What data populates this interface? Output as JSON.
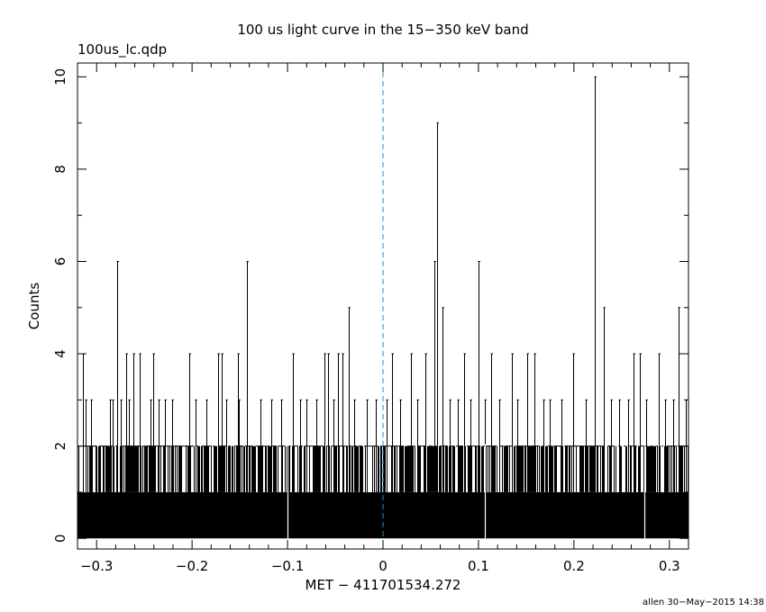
{
  "chart_data": {
    "type": "histogram",
    "title": "100 us light curve in the 15−350 keV band",
    "file_label": "100us_lc.qdp",
    "xlabel": "MET − 411701534.272",
    "ylabel": "Counts",
    "credit": "allen 30−May−2015 14:38",
    "xlim": [
      -0.32,
      0.32
    ],
    "ylim": [
      -0.23,
      10.3
    ],
    "x_ticks": [
      -0.3,
      -0.2,
      -0.1,
      0,
      0.1,
      0.2,
      0.3
    ],
    "x_tick_labels": [
      "−0.3",
      "−0.2",
      "−0.1",
      "0",
      "0.1",
      "0.2",
      "0.3"
    ],
    "y_ticks": [
      0,
      2,
      4,
      6,
      8,
      10
    ],
    "y_tick_labels": [
      "0",
      "2",
      "4",
      "6",
      "8",
      "10"
    ],
    "bin_width": 0.0001,
    "trigger_line": {
      "x": 0,
      "color": "#1f8fbf",
      "style": "dashed"
    },
    "bar_color": "#000000",
    "grid": false,
    "baseline_level": 1,
    "peaks": [
      {
        "x": -0.2781,
        "y": 6
      },
      {
        "x": -0.1427,
        "y": 6
      },
      {
        "x": -0.0362,
        "y": 5
      },
      {
        "x": 0.0534,
        "y": 6
      },
      {
        "x": 0.0571,
        "y": 9
      },
      {
        "x": 0.0625,
        "y": 5
      },
      {
        "x": 0.1,
        "y": 6
      },
      {
        "x": 0.2223,
        "y": 10
      },
      {
        "x": 0.231,
        "y": 5
      },
      {
        "x": 0.3097,
        "y": 5
      },
      {
        "x": -0.3145,
        "y": 4
      },
      {
        "x": -0.2693,
        "y": 4
      },
      {
        "x": -0.2614,
        "y": 4
      },
      {
        "x": -0.2548,
        "y": 4
      },
      {
        "x": -0.2407,
        "y": 4
      },
      {
        "x": -0.2025,
        "y": 4
      },
      {
        "x": -0.1726,
        "y": 4
      },
      {
        "x": -0.1688,
        "y": 4
      },
      {
        "x": -0.1522,
        "y": 4
      },
      {
        "x": -0.0941,
        "y": 4
      },
      {
        "x": -0.0611,
        "y": 4
      },
      {
        "x": -0.0573,
        "y": 4
      },
      {
        "x": -0.0475,
        "y": 4
      },
      {
        "x": -0.0422,
        "y": 4
      },
      {
        "x": 0.0095,
        "y": 4
      },
      {
        "x": 0.0292,
        "y": 4
      },
      {
        "x": 0.0443,
        "y": 4
      },
      {
        "x": 0.0852,
        "y": 4
      },
      {
        "x": 0.1134,
        "y": 4
      },
      {
        "x": 0.1346,
        "y": 4
      },
      {
        "x": 0.1511,
        "y": 4
      },
      {
        "x": 0.1589,
        "y": 4
      },
      {
        "x": 0.1992,
        "y": 4
      },
      {
        "x": 0.2624,
        "y": 4
      },
      {
        "x": 0.2692,
        "y": 4
      },
      {
        "x": 0.2886,
        "y": 4
      },
      {
        "x": -0.3117,
        "y": 3
      },
      {
        "x": -0.3059,
        "y": 3
      },
      {
        "x": -0.2862,
        "y": 3
      },
      {
        "x": -0.2831,
        "y": 3
      },
      {
        "x": -0.2744,
        "y": 3
      },
      {
        "x": -0.2658,
        "y": 3
      },
      {
        "x": -0.2433,
        "y": 3
      },
      {
        "x": -0.2346,
        "y": 3
      },
      {
        "x": -0.2286,
        "y": 3
      },
      {
        "x": -0.2208,
        "y": 3
      },
      {
        "x": -0.1962,
        "y": 3
      },
      {
        "x": -0.1848,
        "y": 3
      },
      {
        "x": -0.1641,
        "y": 3
      },
      {
        "x": -0.1507,
        "y": 3
      },
      {
        "x": -0.1287,
        "y": 3
      },
      {
        "x": -0.1166,
        "y": 3
      },
      {
        "x": -0.1064,
        "y": 3
      },
      {
        "x": -0.0872,
        "y": 3
      },
      {
        "x": -0.0804,
        "y": 3
      },
      {
        "x": -0.0702,
        "y": 3
      },
      {
        "x": -0.0518,
        "y": 3
      },
      {
        "x": -0.0306,
        "y": 3
      },
      {
        "x": -0.0167,
        "y": 3
      },
      {
        "x": -0.0071,
        "y": 3
      },
      {
        "x": 0.0042,
        "y": 3
      },
      {
        "x": 0.0184,
        "y": 3
      },
      {
        "x": 0.0361,
        "y": 3
      },
      {
        "x": 0.0697,
        "y": 3
      },
      {
        "x": 0.0782,
        "y": 3
      },
      {
        "x": 0.0916,
        "y": 3
      },
      {
        "x": 0.1063,
        "y": 3
      },
      {
        "x": 0.1219,
        "y": 3
      },
      {
        "x": 0.1408,
        "y": 3
      },
      {
        "x": 0.1683,
        "y": 3
      },
      {
        "x": 0.1747,
        "y": 3
      },
      {
        "x": 0.1868,
        "y": 3
      },
      {
        "x": 0.2124,
        "y": 3
      },
      {
        "x": 0.2392,
        "y": 3
      },
      {
        "x": 0.2473,
        "y": 3
      },
      {
        "x": 0.2572,
        "y": 3
      },
      {
        "x": 0.2761,
        "y": 3
      },
      {
        "x": 0.2956,
        "y": 3
      },
      {
        "x": 0.3041,
        "y": 3
      },
      {
        "x": 0.3168,
        "y": 3
      }
    ],
    "gaps": [
      -0.1001,
      0.1065,
      0.274
    ]
  }
}
